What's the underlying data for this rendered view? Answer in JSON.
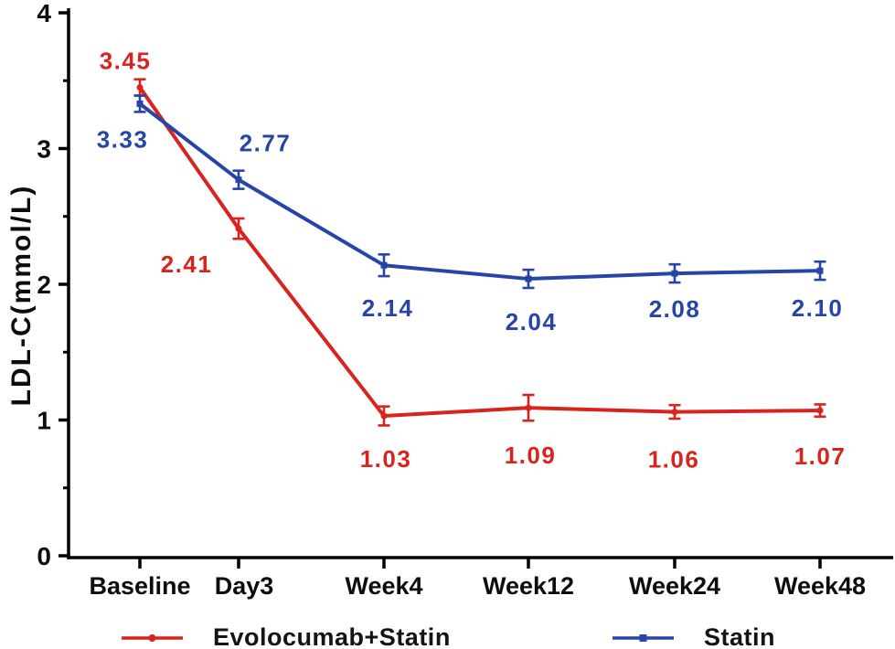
{
  "chart_data": {
    "type": "line",
    "title": "",
    "xlabel": "",
    "ylabel": "LDL-C(mmol/L)",
    "ylim": [
      0,
      4
    ],
    "yticks": [
      0,
      1,
      2,
      3,
      4
    ],
    "yminorticks": [
      0.5,
      1.5,
      2.5,
      3.5
    ],
    "categories": [
      "Baseline",
      "Day3",
      "Week4",
      "Week12",
      "Week24",
      "Week48"
    ],
    "grid": false,
    "legend_position": "bottom",
    "axis_color": "#000000",
    "series": [
      {
        "name": "Evolocumab+Statin",
        "color": "#d8231f",
        "marker": "circle",
        "values": [
          3.45,
          2.41,
          1.03,
          1.09,
          1.06,
          1.07
        ],
        "errors": [
          0.06,
          0.075,
          0.07,
          0.095,
          0.05,
          0.045
        ],
        "point_labels": [
          "3.45",
          "2.41",
          "1.03",
          "1.09",
          "1.06",
          "1.07"
        ],
        "label_offsets": [
          [
            -16,
            -29
          ],
          [
            -57,
            39
          ],
          [
            2,
            47
          ],
          [
            2,
            52
          ],
          [
            -1,
            52
          ],
          [
            0,
            50
          ]
        ]
      },
      {
        "name": "Statin",
        "color": "#2645a7",
        "marker": "square",
        "values": [
          3.33,
          2.77,
          2.14,
          2.04,
          2.08,
          2.1
        ],
        "errors": [
          0.06,
          0.067,
          0.08,
          0.067,
          0.067,
          0.067
        ],
        "point_labels": [
          "3.33",
          "2.77",
          "2.14",
          "2.04",
          "2.08",
          "2.10"
        ],
        "label_offsets": [
          [
            -19,
            39
          ],
          [
            29,
            -40
          ],
          [
            4,
            47
          ],
          [
            3,
            47
          ],
          [
            0,
            39
          ],
          [
            -3,
            41
          ]
        ]
      }
    ]
  }
}
